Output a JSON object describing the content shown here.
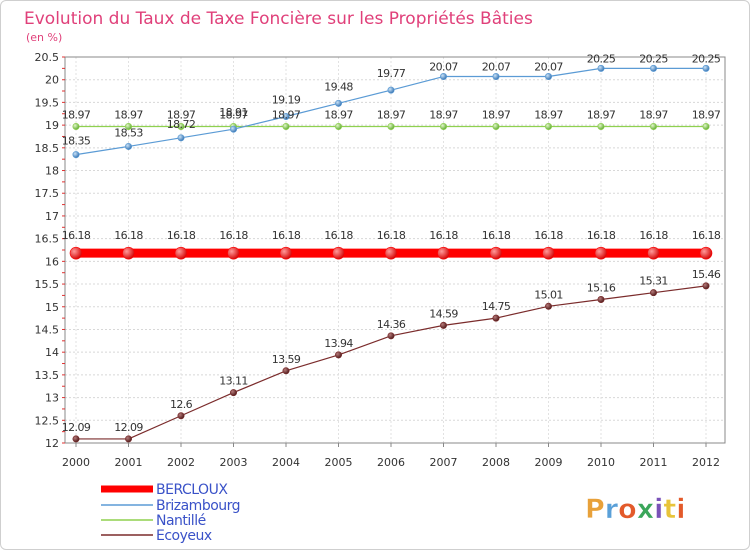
{
  "chart_data": {
    "type": "line",
    "title": "Evolution du Taux de Taxe Foncière sur les Propriétés Bâties",
    "subtitle": "(en %)",
    "xlabel": "",
    "ylabel": "",
    "ylim": [
      12,
      20.5
    ],
    "y_ticks": [
      "12",
      "12.5",
      "13",
      "13.5",
      "14",
      "14.5",
      "15",
      "15.5",
      "16",
      "16.5",
      "17",
      "17.5",
      "18",
      "18.5",
      "19",
      "19.5",
      "20",
      "20.5"
    ],
    "categories": [
      "2000",
      "2001",
      "2002",
      "2003",
      "2004",
      "2005",
      "2006",
      "2007",
      "2008",
      "2009",
      "2010",
      "2011",
      "2012"
    ],
    "grid": true,
    "legend_position": "bottom-left",
    "series": [
      {
        "name": "BERCLOUX",
        "color": "#ff0000",
        "values": [
          16.18,
          16.18,
          16.18,
          16.18,
          16.18,
          16.18,
          16.18,
          16.18,
          16.18,
          16.18,
          16.18,
          16.18,
          16.18
        ],
        "labels": [
          "16.18",
          "16.18",
          "16.18",
          "16.18",
          "16.18",
          "16.18",
          "16.18",
          "16.18",
          "16.18",
          "16.18",
          "16.18",
          "16.18",
          "16.18"
        ]
      },
      {
        "name": "Brizambourg",
        "color": "#5b9bd5",
        "values": [
          18.35,
          18.53,
          18.72,
          18.91,
          19.19,
          19.48,
          19.77,
          20.07,
          20.07,
          20.07,
          20.25,
          20.25,
          20.25
        ],
        "labels": [
          "18.35",
          "18.53",
          "18.72",
          "18.91",
          "19.19",
          "19.48",
          "19.77",
          "20.07",
          "20.07",
          "20.07",
          "20.25",
          "20.25",
          "20.25"
        ]
      },
      {
        "name": "Nantillé",
        "color": "#8fd14f",
        "values": [
          18.97,
          18.97,
          18.97,
          18.97,
          18.97,
          18.97,
          18.97,
          18.97,
          18.97,
          18.97,
          18.97,
          18.97,
          18.97
        ],
        "labels": [
          "18.97",
          "18.97",
          "18.97",
          "18.97",
          "18.97",
          "18.97",
          "18.97",
          "18.97",
          "18.97",
          "18.97",
          "18.97",
          "18.97",
          "18.97"
        ]
      },
      {
        "name": "Ecoyeux",
        "color": "#7b2c2c",
        "values": [
          12.09,
          12.09,
          12.6,
          13.11,
          13.59,
          13.94,
          14.36,
          14.59,
          14.75,
          15.01,
          15.16,
          15.31,
          15.46
        ],
        "labels": [
          "12.09",
          "12.09",
          "12.6",
          "13.11",
          "13.59",
          "13.94",
          "14.36",
          "14.59",
          "14.75",
          "15.01",
          "15.16",
          "15.31",
          "15.46"
        ]
      }
    ]
  },
  "branding": {
    "logo_text": "Proxiti",
    "logo_colors": [
      "#e8a13a",
      "#5aa0d8",
      "#e35a2a",
      "#3aa65a",
      "#7a52b8",
      "#e8c43a"
    ]
  }
}
